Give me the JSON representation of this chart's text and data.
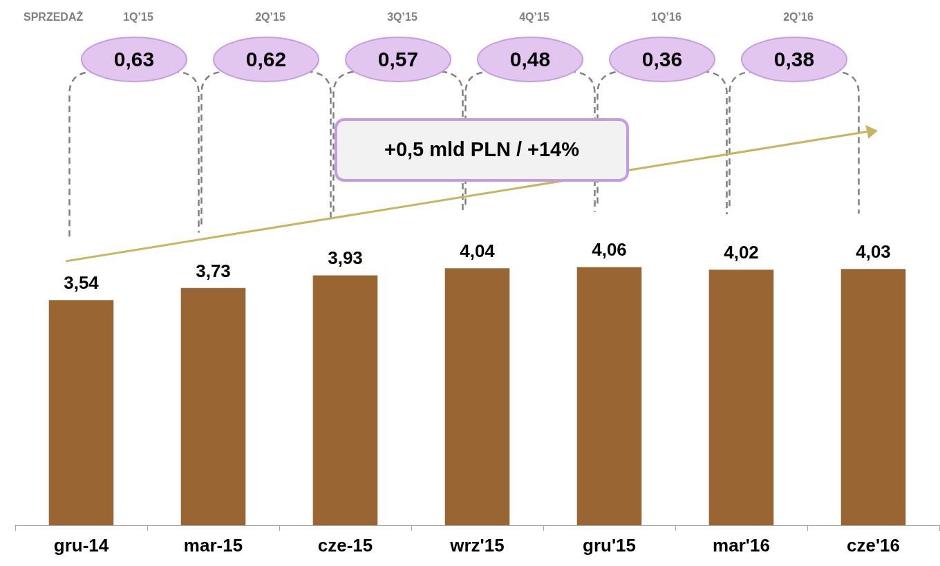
{
  "chart_data": {
    "type": "bar",
    "categories": [
      "gru-14",
      "mar-15",
      "cze-15",
      "wrz'15",
      "gru'15",
      "mar'16",
      "cze'16"
    ],
    "values": [
      3.54,
      3.73,
      3.93,
      4.04,
      4.06,
      4.02,
      4.03
    ],
    "color": "#996633",
    "value_labels": [
      "3,54",
      "3,73",
      "3,93",
      "4,04",
      "4,06",
      "4,02",
      "4,03"
    ],
    "tick_labels": "x",
    "grid": false,
    "annotations": [
      "SPRZEDAŻ",
      "1Q’15",
      "0,63",
      "2Q’15",
      "0,62",
      "3Q’15",
      "0,57",
      "4Q’15",
      "0,48",
      "1Q’16",
      "0,36",
      "2Q’16",
      "0,38",
      "+0,5 mld PLN / +14%"
    ]
  }
}
